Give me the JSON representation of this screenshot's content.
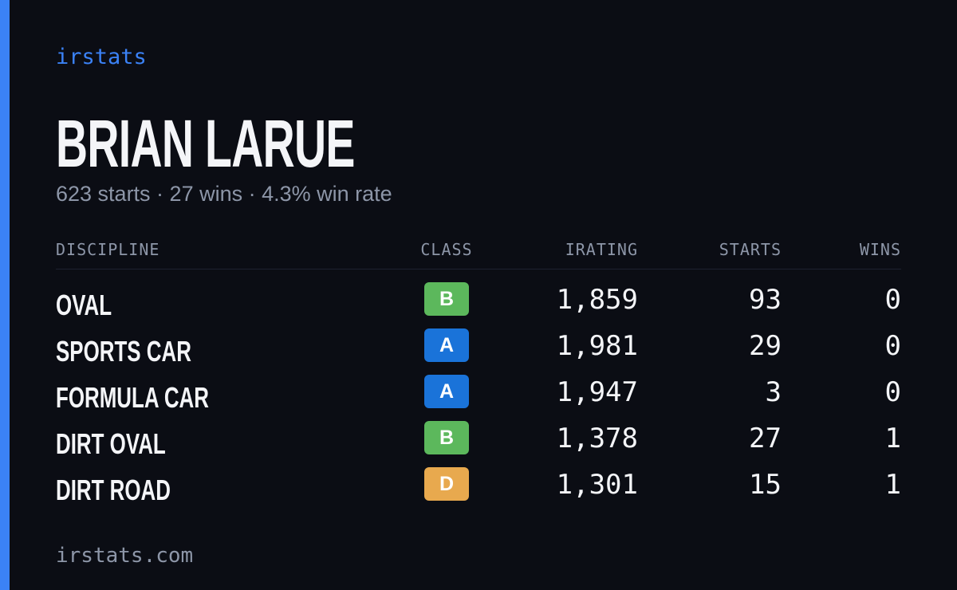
{
  "brand": "irstats",
  "name": "BRIAN LARUE",
  "summary": "623 starts · 27 wins · 4.3% win rate",
  "table": {
    "headers": [
      "DISCIPLINE",
      "CLASS",
      "IRATING",
      "STARTS",
      "WINS"
    ],
    "rows": [
      {
        "discipline": "OVAL",
        "class": "B",
        "class_color": "#5cb85c",
        "irating": "1,859",
        "starts": "93",
        "wins": "0"
      },
      {
        "discipline": "SPORTS CAR",
        "class": "A",
        "class_color": "#1a73d9",
        "irating": "1,981",
        "starts": "29",
        "wins": "0"
      },
      {
        "discipline": "FORMULA CAR",
        "class": "A",
        "class_color": "#1a73d9",
        "irating": "1,947",
        "starts": "3",
        "wins": "0"
      },
      {
        "discipline": "DIRT OVAL",
        "class": "B",
        "class_color": "#5cb85c",
        "irating": "1,378",
        "starts": "27",
        "wins": "1"
      },
      {
        "discipline": "DIRT ROAD",
        "class": "D",
        "class_color": "#e8a94e",
        "irating": "1,301",
        "starts": "15",
        "wins": "1"
      }
    ]
  },
  "footer": "irstats.com"
}
